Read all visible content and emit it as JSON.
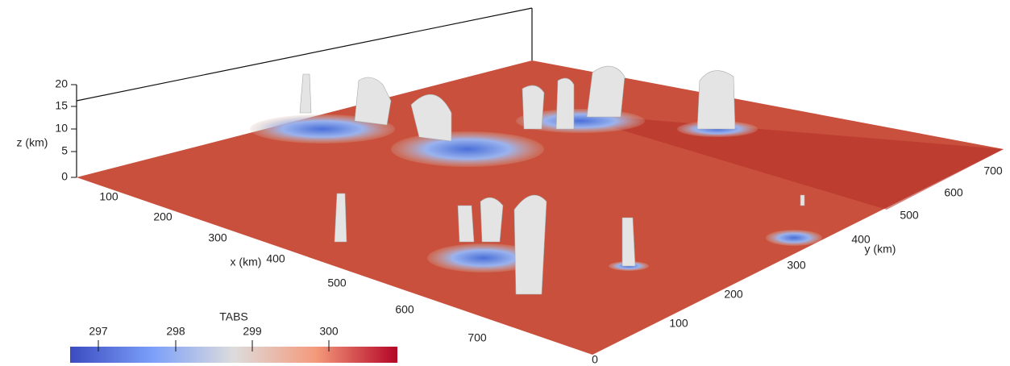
{
  "z_axis": {
    "label": "z (km)",
    "ticks": [
      0,
      5,
      10,
      15,
      20
    ]
  },
  "x_axis": {
    "label": "x (km)",
    "ticks": [
      100,
      200,
      300,
      400,
      500,
      600,
      700
    ]
  },
  "y_axis": {
    "label": "y (km)",
    "ticks": [
      0,
      100,
      200,
      300,
      400,
      500,
      600,
      700
    ]
  },
  "colorbar": {
    "title": "TABS",
    "ticks": [
      297,
      298,
      299,
      300
    ]
  }
}
